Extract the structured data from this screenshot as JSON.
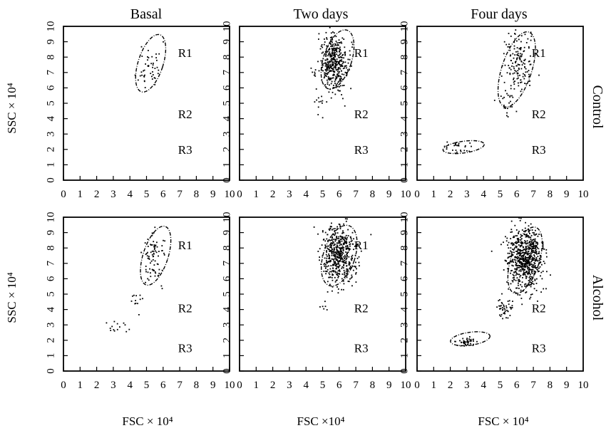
{
  "figure": {
    "columns": [
      "Basal",
      "Two days",
      "Four days"
    ],
    "rows": [
      "Control",
      "Alcohol"
    ],
    "ylabel": "SSC × 10⁴",
    "xlabels": [
      "FSC × 10⁴",
      "FSC ×10⁴",
      "FSC × 10⁴"
    ],
    "region_labels": [
      "R1",
      "R2",
      "R3"
    ],
    "x_ticks": [
      "0",
      "1",
      "2",
      "3",
      "4",
      "5",
      "6",
      "7",
      "8",
      "9",
      "10"
    ],
    "y_ticks": [
      "0",
      "1",
      "2",
      "3",
      "4",
      "5",
      "6",
      "7",
      "8",
      "9",
      "10"
    ],
    "xlim": [
      0,
      10
    ],
    "ylim": [
      0,
      10
    ]
  },
  "chart_data": [
    {
      "type": "scatter",
      "row": "Control",
      "column": "Basal",
      "xlabel": "",
      "ylabel": "SSC × 10⁴",
      "xlim": [
        0,
        10
      ],
      "ylim": [
        0,
        10
      ],
      "gates": [
        {
          "label": "R1",
          "cx": 5.25,
          "cy": 7.6,
          "rx": 0.75,
          "ry": 1.95,
          "rotate": 18
        }
      ],
      "clusters": [
        {
          "cx": 5.2,
          "cy": 7.4,
          "sx": 0.35,
          "sy": 0.8,
          "n": 45,
          "seed": 11
        }
      ]
    },
    {
      "type": "scatter",
      "row": "Control",
      "column": "Two days",
      "xlabel": "",
      "ylabel": "",
      "xlim": [
        0,
        10
      ],
      "ylim": [
        0,
        10
      ],
      "gates": [
        {
          "label": "R1",
          "cx": 5.9,
          "cy": 7.85,
          "rx": 0.85,
          "ry": 2.0,
          "rotate": 18
        }
      ],
      "clusters": [
        {
          "cx": 5.7,
          "cy": 7.6,
          "sx": 0.45,
          "sy": 0.9,
          "n": 420,
          "seed": 21
        },
        {
          "cx": 4.8,
          "cy": 5.0,
          "sx": 0.2,
          "sy": 0.5,
          "n": 12,
          "seed": 22
        }
      ]
    },
    {
      "type": "scatter",
      "row": "Control",
      "column": "Four days",
      "xlabel": "",
      "ylabel": "",
      "xlim": [
        0,
        10
      ],
      "ylim": [
        0,
        10
      ],
      "gates": [
        {
          "label": "R1",
          "cx": 6.0,
          "cy": 7.2,
          "rx": 0.9,
          "ry": 2.55,
          "rotate": 18
        },
        {
          "label": "R3",
          "cx": 2.8,
          "cy": 2.15,
          "rx": 1.25,
          "ry": 0.38,
          "rotate": -8
        }
      ],
      "clusters": [
        {
          "cx": 6.1,
          "cy": 7.6,
          "sx": 0.45,
          "sy": 1.0,
          "n": 150,
          "seed": 31
        },
        {
          "cx": 5.5,
          "cy": 5.2,
          "sx": 0.3,
          "sy": 0.6,
          "n": 25,
          "seed": 32
        },
        {
          "cx": 2.4,
          "cy": 2.1,
          "sx": 0.4,
          "sy": 0.2,
          "n": 28,
          "seed": 33
        }
      ]
    },
    {
      "type": "scatter",
      "row": "Alcohol",
      "column": "Basal",
      "xlabel": "FSC × 10⁴",
      "ylabel": "SSC × 10⁴",
      "xlim": [
        0,
        10
      ],
      "ylim": [
        0,
        10
      ],
      "gates": [
        {
          "label": "R1",
          "cx": 5.55,
          "cy": 7.5,
          "rx": 0.75,
          "ry": 2.0,
          "rotate": 18
        }
      ],
      "clusters": [
        {
          "cx": 5.5,
          "cy": 7.4,
          "sx": 0.35,
          "sy": 0.8,
          "n": 80,
          "seed": 41
        },
        {
          "cx": 4.2,
          "cy": 4.6,
          "sx": 0.3,
          "sy": 0.35,
          "n": 12,
          "seed": 42
        },
        {
          "cx": 3.1,
          "cy": 2.9,
          "sx": 0.4,
          "sy": 0.35,
          "n": 14,
          "seed": 43
        }
      ]
    },
    {
      "type": "scatter",
      "row": "Alcohol",
      "column": "Two days",
      "xlabel": "FSC ×10⁴",
      "ylabel": "",
      "xlim": [
        0,
        10
      ],
      "ylim": [
        0,
        10
      ],
      "gates": [
        {
          "label": "R1",
          "cx": 6.0,
          "cy": 7.5,
          "rx": 0.95,
          "ry": 2.05,
          "rotate": 18
        }
      ],
      "clusters": [
        {
          "cx": 6.0,
          "cy": 7.5,
          "sx": 0.5,
          "sy": 0.95,
          "n": 520,
          "seed": 51
        },
        {
          "cx": 5.1,
          "cy": 4.2,
          "sx": 0.1,
          "sy": 0.2,
          "n": 6,
          "seed": 52
        }
      ]
    },
    {
      "type": "scatter",
      "row": "Alcohol",
      "column": "Four days",
      "xlabel": "FSC × 10⁴",
      "ylabel": "",
      "xlim": [
        0,
        10
      ],
      "ylim": [
        0,
        10
      ],
      "gates": [
        {
          "label": "R1",
          "cx": 6.5,
          "cy": 7.2,
          "rx": 0.85,
          "ry": 2.25,
          "rotate": 18
        },
        {
          "label": "R3",
          "cx": 3.2,
          "cy": 2.1,
          "rx": 1.2,
          "ry": 0.42,
          "rotate": -8
        }
      ],
      "clusters": [
        {
          "cx": 6.5,
          "cy": 7.3,
          "sx": 0.5,
          "sy": 1.0,
          "n": 650,
          "seed": 61
        },
        {
          "cx": 5.3,
          "cy": 4.1,
          "sx": 0.2,
          "sy": 0.3,
          "n": 45,
          "seed": 62
        },
        {
          "cx": 2.9,
          "cy": 1.9,
          "sx": 0.3,
          "sy": 0.15,
          "n": 45,
          "seed": 63
        }
      ]
    }
  ]
}
